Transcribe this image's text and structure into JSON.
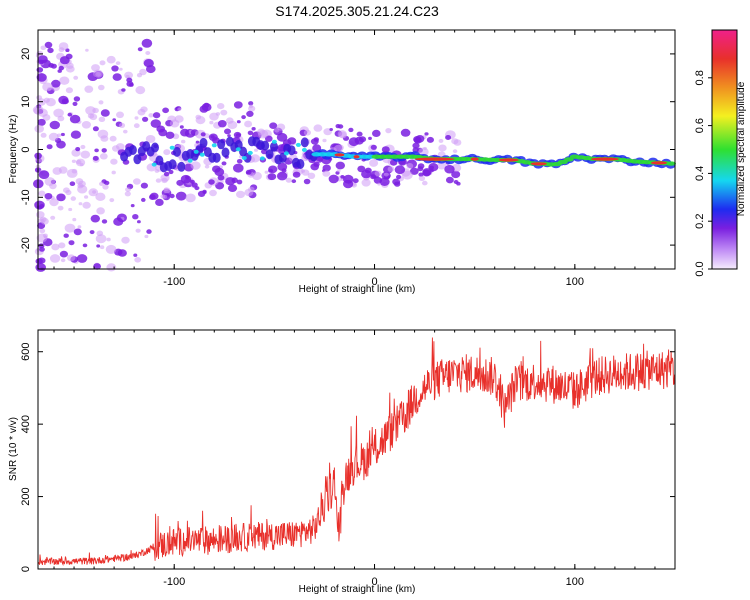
{
  "title": "S174.2025.305.21.24.C23",
  "colors": {
    "snr_line": "#e8302b",
    "ridge_hot": "#e8302b",
    "ridge_mid": "#2fe030",
    "ridge_cool": "#15d7f0",
    "speckle": "#7a1fe0",
    "speckle_light": "#cf9cf5"
  },
  "chart_data": [
    {
      "type": "heatmap",
      "xlabel": "Height of straight line (km)",
      "ylabel": "Frequency (Hz)",
      "xlim": [
        -168,
        150
      ],
      "ylim": [
        -25,
        25
      ],
      "x_ticks": [
        -100,
        0,
        100
      ],
      "y_ticks": [
        -20,
        -10,
        0,
        10,
        20
      ],
      "ridge": {
        "x": [
          -168,
          -130,
          -110,
          -90,
          -70,
          -50,
          -35,
          -20,
          -10,
          0,
          10,
          20,
          30,
          40,
          50,
          60,
          70,
          80,
          85,
          90,
          95,
          100,
          110,
          120,
          130,
          150
        ],
        "freq": [
          -2,
          -2,
          -1.5,
          -1,
          0,
          0,
          -1,
          -1,
          -1.5,
          -1.5,
          -1.5,
          -1.5,
          -2,
          -2,
          -2,
          -2.2,
          -2.2,
          -3,
          -3,
          -3.2,
          -2.5,
          -1.5,
          -2,
          -2,
          -2.5,
          -3
        ]
      },
      "colorbar": {
        "label": "Normalized spectral amplitude",
        "range": [
          0,
          1
        ],
        "ticks": [
          "0.0",
          "0.2",
          "0.4",
          "0.6",
          "0.8"
        ]
      }
    },
    {
      "type": "line",
      "xlabel": "Height of straight line (km)",
      "ylabel": "SNR (10 * v/v)",
      "xlim": [
        -168,
        150
      ],
      "ylim": [
        0,
        660
      ],
      "x_ticks": [
        -100,
        0,
        100
      ],
      "y_ticks": [
        0,
        200,
        400,
        600
      ],
      "series": [
        {
          "name": "SNR",
          "x": [
            -168,
            -140,
            -120,
            -110,
            -100,
            -80,
            -60,
            -40,
            -30,
            -25,
            -20,
            -18,
            -15,
            -10,
            -5,
            0,
            5,
            10,
            15,
            20,
            25,
            30,
            40,
            50,
            60,
            65,
            70,
            80,
            90,
            100,
            110,
            120,
            130,
            140,
            150
          ],
          "values": [
            20,
            22,
            35,
            60,
            75,
            80,
            90,
            95,
            110,
            180,
            240,
            90,
            250,
            290,
            300,
            330,
            360,
            390,
            420,
            470,
            500,
            520,
            540,
            540,
            530,
            440,
            510,
            520,
            510,
            490,
            530,
            540,
            545,
            550,
            550
          ]
        }
      ]
    }
  ]
}
